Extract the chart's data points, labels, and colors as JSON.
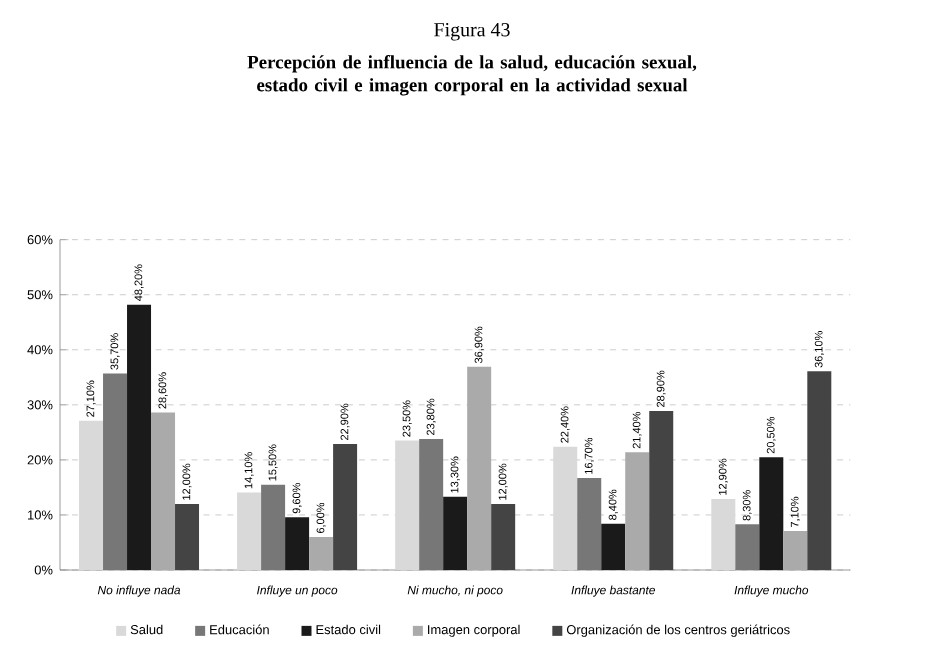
{
  "chart_data": {
    "type": "bar",
    "title": "Figura 43",
    "subtitle": "Percepción de influencia de la salud, educación sexual, estado civil e imagen corporal en la actividad sexual",
    "categories": [
      "No influye nada",
      "Influye un poco",
      "Ni mucho, ni poco",
      "Influye bastante",
      "Influye mucho"
    ],
    "series": [
      {
        "name": "Salud",
        "color": "#d9d9d9",
        "values": [
          27.1,
          14.1,
          23.5,
          22.4,
          12.9
        ],
        "value_labels": [
          "27,10%",
          "14,10%",
          "23,50%",
          "22,40%",
          "12,90%"
        ]
      },
      {
        "name": "Educación",
        "color": "#777777",
        "values": [
          35.7,
          15.5,
          23.8,
          16.7,
          8.3
        ],
        "value_labels": [
          "35,70%",
          "15,50%",
          "23,80%",
          "16,70%",
          "8,30%"
        ]
      },
      {
        "name": "Estado civil",
        "color": "#1a1a1a",
        "values": [
          48.2,
          9.6,
          13.3,
          8.4,
          20.5
        ],
        "value_labels": [
          "48,20%",
          "9,60%",
          "13,30%",
          "8,40%",
          "20,50%"
        ]
      },
      {
        "name": "Imagen corporal",
        "color": "#aaaaaa",
        "values": [
          28.6,
          6.0,
          36.9,
          21.4,
          7.1
        ],
        "value_labels": [
          "28,60%",
          "6,00%",
          "36,90%",
          "21,40%",
          "7,10%"
        ]
      },
      {
        "name": "Organización de los centros geriátricos",
        "color": "#444444",
        "values": [
          12.0,
          22.9,
          12.0,
          28.9,
          36.1
        ],
        "value_labels": [
          "12,00%",
          "22,90%",
          "12,00%",
          "28,90%",
          "36,10%"
        ]
      }
    ],
    "ylim": [
      0,
      60
    ],
    "yticks": [
      {
        "value": 0,
        "label": "0%"
      },
      {
        "value": 10,
        "label": "10%"
      },
      {
        "value": 20,
        "label": "20%"
      },
      {
        "value": 30,
        "label": "30%"
      },
      {
        "value": 40,
        "label": "40%"
      },
      {
        "value": 50,
        "label": "50%"
      },
      {
        "value": 60,
        "label": "60%"
      }
    ],
    "grid": "y",
    "legend": "bottom"
  }
}
